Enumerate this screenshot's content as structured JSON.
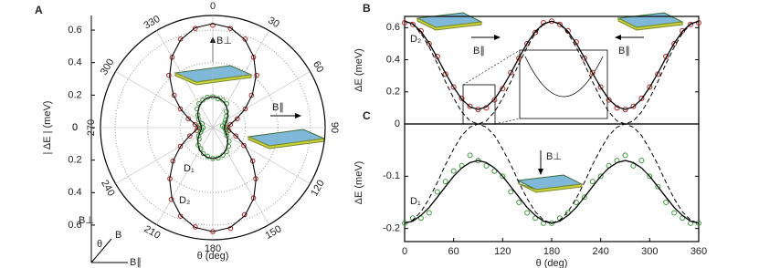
{
  "chart_data": [
    {
      "type": "polar",
      "panel": "A",
      "rlabel": "| ΔE | (meV)",
      "xlabel": "θ (deg)",
      "rlim": [
        0,
        0.69
      ],
      "rticks": [
        0,
        0.2,
        0.4,
        0.6
      ],
      "thetaticks": [
        0,
        30,
        60,
        90,
        120,
        150,
        180,
        210,
        240,
        270,
        300,
        330
      ],
      "theta": [
        0,
        10,
        20,
        30,
        40,
        50,
        60,
        70,
        80,
        90,
        100,
        110,
        120,
        130,
        140,
        150,
        160,
        170,
        180,
        190,
        200,
        210,
        220,
        230,
        240,
        250,
        260,
        270,
        280,
        290,
        300,
        310,
        320,
        330,
        340,
        350
      ],
      "series": [
        {
          "name": "D₂",
          "color": "#b22222",
          "style": "markers",
          "values": [
            0.63,
            0.62,
            0.58,
            0.5,
            0.42,
            0.31,
            0.23,
            0.16,
            0.11,
            0.09,
            0.1,
            0.15,
            0.22,
            0.32,
            0.41,
            0.5,
            0.57,
            0.63,
            0.64,
            0.62,
            0.58,
            0.51,
            0.41,
            0.32,
            0.23,
            0.15,
            0.1,
            0.09,
            0.11,
            0.16,
            0.23,
            0.31,
            0.42,
            0.5,
            0.58,
            0.62
          ]
        },
        {
          "color": "#000000",
          "style": "line",
          "values": [
            0.64,
            0.624,
            0.576,
            0.503,
            0.413,
            0.317,
            0.228,
            0.154,
            0.107,
            0.09,
            0.107,
            0.154,
            0.228,
            0.317,
            0.413,
            0.503,
            0.576,
            0.624,
            0.64,
            0.624,
            0.576,
            0.503,
            0.413,
            0.317,
            0.228,
            0.154,
            0.107,
            0.09,
            0.107,
            0.154,
            0.228,
            0.317,
            0.413,
            0.503,
            0.576,
            0.624
          ]
        },
        {
          "name": "D₁",
          "color": "#3a9a3a",
          "style": "markers",
          "values": [
            0.19,
            0.18,
            0.18,
            0.17,
            0.13,
            0.11,
            0.09,
            0.08,
            0.06,
            0.07,
            0.08,
            0.09,
            0.1,
            0.13,
            0.15,
            0.17,
            0.18,
            0.19,
            0.19,
            0.18,
            0.17,
            0.15,
            0.14,
            0.11,
            0.1,
            0.08,
            0.07,
            0.06,
            0.08,
            0.07,
            0.1,
            0.12,
            0.15,
            0.17,
            0.18,
            0.19
          ]
        },
        {
          "color": "#000000",
          "style": "line",
          "values": [
            0.19,
            0.186,
            0.175,
            0.16,
            0.14,
            0.12,
            0.1,
            0.084,
            0.074,
            0.07,
            0.074,
            0.084,
            0.1,
            0.12,
            0.14,
            0.16,
            0.175,
            0.186,
            0.19,
            0.186,
            0.175,
            0.16,
            0.14,
            0.12,
            0.1,
            0.084,
            0.074,
            0.07,
            0.074,
            0.084,
            0.1,
            0.12,
            0.14,
            0.16,
            0.175,
            0.186
          ]
        }
      ],
      "annotations": [
        "B⊥",
        "B∥"
      ],
      "inset_axes": [
        "B⊥",
        "B",
        "θ",
        "B∥"
      ]
    },
    {
      "type": "line",
      "panel": "B",
      "ylabel": "ΔE (meV)",
      "x": [
        0,
        10,
        20,
        30,
        40,
        50,
        60,
        70,
        80,
        90,
        100,
        110,
        120,
        130,
        140,
        150,
        160,
        170,
        180,
        190,
        200,
        210,
        220,
        230,
        240,
        250,
        260,
        270,
        280,
        290,
        300,
        310,
        320,
        330,
        340,
        350,
        360
      ],
      "xlim": [
        0,
        360
      ],
      "ylim": [
        0,
        0.67
      ],
      "yticks": [
        0,
        0.2,
        0.4,
        0.6
      ],
      "series": [
        {
          "name": "D₂",
          "color": "#b22222",
          "style": "markers",
          "values": [
            0.63,
            0.62,
            0.58,
            0.5,
            0.42,
            0.31,
            0.23,
            0.16,
            0.11,
            0.09,
            0.1,
            0.15,
            0.22,
            0.32,
            0.41,
            0.5,
            0.57,
            0.63,
            0.64,
            0.62,
            0.58,
            0.51,
            0.41,
            0.32,
            0.23,
            0.15,
            0.1,
            0.09,
            0.11,
            0.16,
            0.23,
            0.31,
            0.42,
            0.5,
            0.58,
            0.62,
            0.63
          ]
        },
        {
          "color": "#000000",
          "style": "line",
          "values": [
            0.64,
            0.624,
            0.576,
            0.503,
            0.413,
            0.317,
            0.228,
            0.154,
            0.107,
            0.09,
            0.107,
            0.154,
            0.228,
            0.317,
            0.413,
            0.503,
            0.576,
            0.624,
            0.64,
            0.624,
            0.576,
            0.503,
            0.413,
            0.317,
            0.228,
            0.154,
            0.107,
            0.09,
            0.107,
            0.154,
            0.228,
            0.317,
            0.413,
            0.503,
            0.576,
            0.624,
            0.64
          ]
        },
        {
          "color": "#000000",
          "style": "dashed",
          "values": [
            0.64,
            0.621,
            0.565,
            0.48,
            0.376,
            0.264,
            0.16,
            0.075,
            0.019,
            0,
            0.019,
            0.075,
            0.16,
            0.264,
            0.376,
            0.48,
            0.565,
            0.621,
            0.64,
            0.621,
            0.565,
            0.48,
            0.376,
            0.264,
            0.16,
            0.075,
            0.019,
            0,
            0.019,
            0.075,
            0.16,
            0.264,
            0.376,
            0.48,
            0.565,
            0.621,
            0.64
          ]
        }
      ],
      "annotations": [
        "B∥",
        "B∥"
      ]
    },
    {
      "type": "line",
      "panel": "C",
      "ylabel": "ΔE (meV)",
      "xlabel": "θ (deg)",
      "x": [
        0,
        10,
        20,
        30,
        40,
        50,
        60,
        70,
        80,
        90,
        100,
        110,
        120,
        130,
        140,
        150,
        160,
        170,
        180,
        190,
        200,
        210,
        220,
        230,
        240,
        250,
        260,
        270,
        280,
        290,
        300,
        310,
        320,
        330,
        340,
        350,
        360
      ],
      "xlim": [
        0,
        360
      ],
      "xticks": [
        0,
        60,
        120,
        180,
        240,
        300,
        360
      ],
      "ylim": [
        -0.225,
        0
      ],
      "yticks": [
        -0.2,
        -0.1
      ],
      "series": [
        {
          "name": "D₁",
          "color": "#3a9a3a",
          "style": "markers",
          "values": [
            -0.19,
            -0.18,
            -0.18,
            -0.17,
            -0.13,
            -0.11,
            -0.09,
            -0.08,
            -0.06,
            -0.07,
            -0.08,
            -0.09,
            -0.1,
            -0.13,
            -0.15,
            -0.17,
            -0.18,
            -0.19,
            -0.19,
            -0.18,
            -0.17,
            -0.15,
            -0.14,
            -0.11,
            -0.1,
            -0.08,
            -0.07,
            -0.06,
            -0.08,
            -0.07,
            -0.1,
            -0.12,
            -0.15,
            -0.17,
            -0.18,
            -0.19,
            -0.19
          ]
        },
        {
          "color": "#000000",
          "style": "line",
          "values": [
            -0.19,
            -0.186,
            -0.175,
            -0.16,
            -0.14,
            -0.12,
            -0.1,
            -0.084,
            -0.074,
            -0.07,
            -0.074,
            -0.084,
            -0.1,
            -0.12,
            -0.14,
            -0.16,
            -0.175,
            -0.186,
            -0.19,
            -0.186,
            -0.175,
            -0.16,
            -0.14,
            -0.12,
            -0.1,
            -0.084,
            -0.074,
            -0.07,
            -0.074,
            -0.084,
            -0.1,
            -0.12,
            -0.14,
            -0.16,
            -0.175,
            -0.186,
            -0.19
          ]
        },
        {
          "color": "#000000",
          "style": "dashed",
          "values": [
            -0.19,
            -0.184,
            -0.168,
            -0.143,
            -0.112,
            -0.078,
            -0.048,
            -0.022,
            -0.006,
            0,
            -0.006,
            -0.022,
            -0.048,
            -0.078,
            -0.112,
            -0.143,
            -0.168,
            -0.184,
            -0.19,
            -0.184,
            -0.168,
            -0.143,
            -0.112,
            -0.078,
            -0.048,
            -0.022,
            -0.006,
            0,
            -0.006,
            -0.022,
            -0.048,
            -0.078,
            -0.112,
            -0.143,
            -0.168,
            -0.184,
            -0.19
          ]
        }
      ],
      "annotations": [
        "B⊥"
      ]
    }
  ]
}
